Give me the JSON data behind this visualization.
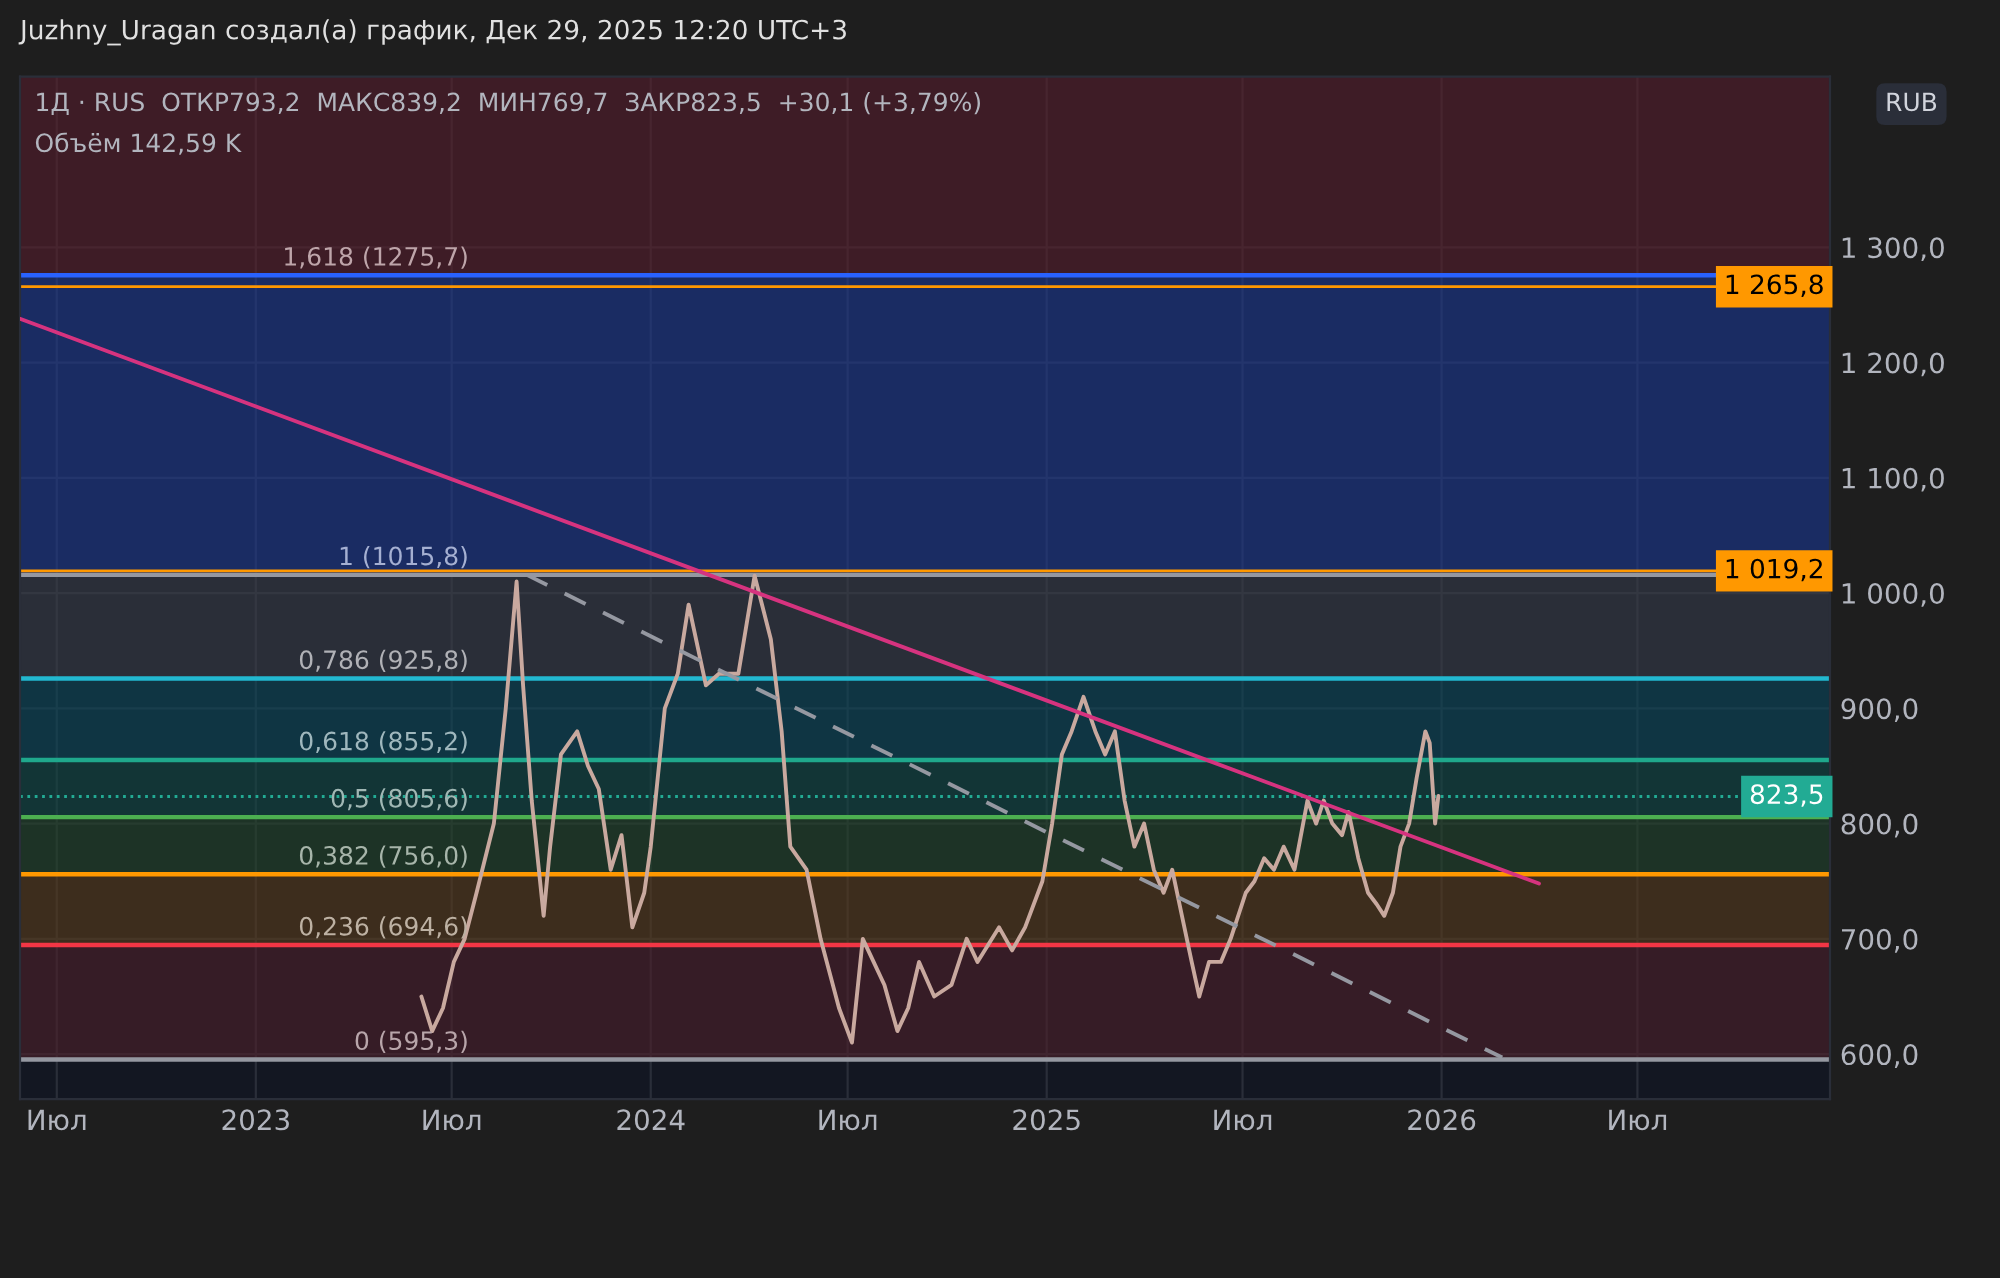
{
  "chart_data": {
    "type": "line",
    "title": "Juzhny_Uragan создал(а) график, Дек 29, 2025 12:20 UTC+3",
    "subtitle": "1Д · RUS  ОТКР793,2  МАКС839,2  МИН769,7  ЗАКР823,5  +30,1 (+3,79%)",
    "annotations": [
      "Объём 142,59 K",
      "RUB"
    ],
    "xlim": [
      "2022-05-28",
      "2026-12-26"
    ],
    "xticks": [
      {
        "value": "2022-07",
        "label": "Июл"
      },
      "2023",
      {
        "value": "2023-07",
        "label": "Июл"
      },
      "2024",
      {
        "value": "2024-07",
        "label": "Июл"
      },
      "2025",
      {
        "value": "2025-07",
        "label": "Июл"
      },
      "2026",
      {
        "value": "2026-07",
        "label": "Июл"
      }
    ],
    "ylim": [
      561,
      1448
    ],
    "yticks": [
      {
        "value": 600,
        "label": "600,0"
      },
      {
        "value": 700,
        "label": "700,0"
      },
      {
        "value": 800,
        "label": "800,0"
      },
      {
        "value": 900,
        "label": "900,0"
      },
      {
        "value": 1000,
        "label": "1 000,0"
      },
      {
        "value": 1100,
        "label": "1 100,0"
      },
      {
        "value": 1200,
        "label": "1 200,0"
      },
      {
        "value": 1300,
        "label": "1 300,0"
      }
    ],
    "grid": true,
    "bands": [
      {
        "axis": "y",
        "from": 1275.7,
        "to": 1448,
        "color": "#5c1f2a",
        "label": "1,618 (1275,7)"
      },
      {
        "axis": "y",
        "from": 1015.8,
        "to": 1275.7,
        "color": "#1f3a8f",
        "label": "1 (1015,8)"
      },
      {
        "axis": "y",
        "from": 925.8,
        "to": 1015.8,
        "color": "#3a3d48",
        "label": "0,786 (925,8)"
      },
      {
        "axis": "y",
        "from": 855.2,
        "to": 925.8,
        "color": "#0e4a5a",
        "label": "0,618 (855,2)"
      },
      {
        "axis": "y",
        "from": 805.6,
        "to": 855.2,
        "color": "#124a44",
        "label": "0,5 (805,6)"
      },
      {
        "axis": "y",
        "from": 756.0,
        "to": 805.6,
        "color": "#24462a",
        "label": "0,382 (756,0)"
      },
      {
        "axis": "y",
        "from": 694.6,
        "to": 756.0,
        "color": "#5a3c1a",
        "label": "0,236 (694,6)"
      },
      {
        "axis": "y",
        "from": 595.3,
        "to": 694.6,
        "color": "#4e1f2a",
        "label": "0 (595,3)"
      }
    ],
    "ref_lines": [
      {
        "axis": "y",
        "value": 1275.7,
        "color": "#2962ff"
      },
      {
        "axis": "y",
        "value": 1015.8,
        "color": "#9598a1"
      },
      {
        "axis": "y",
        "value": 925.8,
        "color": "#22b8d0"
      },
      {
        "axis": "y",
        "value": 855.2,
        "color": "#1fa88c"
      },
      {
        "axis": "y",
        "value": 805.6,
        "color": "#4caf50"
      },
      {
        "axis": "y",
        "value": 756.0,
        "color": "#ff9800"
      },
      {
        "axis": "y",
        "value": 694.6,
        "color": "#f23645"
      },
      {
        "axis": "y",
        "value": 595.3,
        "color": "#9598a1"
      },
      {
        "axis": "y",
        "value": 1265.8,
        "label": "1 265,8",
        "color": "#ff9800"
      },
      {
        "axis": "y",
        "value": 1019.2,
        "label": "1 019,2",
        "color": "#ff9800"
      },
      {
        "axis": "y",
        "value": 823.5,
        "label": "823,5",
        "color": "#22ab94",
        "line_style": "dotted"
      }
    ],
    "series": [
      {
        "color": "#c9a99f",
        "x": [
          "2023-06-03",
          "2023-06-13",
          "2023-06-23",
          "2023-07-03",
          "2023-07-13",
          "2023-07-24",
          "2023-08-09",
          "2023-08-20",
          "2023-08-30",
          "2023-09-05",
          "2023-09-13",
          "2023-09-24",
          "2023-09-30",
          "2023-10-10",
          "2023-10-25",
          "2023-11-04",
          "2023-11-14",
          "2023-11-25",
          "2023-12-05",
          "2023-12-15",
          "2023-12-26",
          "2024-01-01",
          "2024-01-14",
          "2024-01-26",
          "2024-02-05",
          "2024-02-21",
          "2024-03-04",
          "2024-03-22",
          "2024-04-06",
          "2024-04-21",
          "2024-05-01",
          "2024-05-09",
          "2024-05-24",
          "2024-06-06",
          "2024-06-23",
          "2024-07-05",
          "2024-07-15",
          "2024-07-25",
          "2024-08-04",
          "2024-08-16",
          "2024-08-26",
          "2024-09-05",
          "2024-09-19",
          "2024-10-05",
          "2024-10-19",
          "2024-10-29",
          "2024-11-18",
          "2024-11-30",
          "2024-12-12",
          "2024-12-28",
          "2025-01-06",
          "2025-01-15",
          "2025-01-24",
          "2025-02-04",
          "2025-02-15",
          "2025-02-24",
          "2025-03-05",
          "2025-03-14",
          "2025-03-23",
          "2025-04-01",
          "2025-04-10",
          "2025-04-19",
          "2025-04-27",
          "2025-05-06",
          "2025-05-15",
          "2025-05-22",
          "2025-05-31",
          "2025-06-11",
          "2025-06-20",
          "2025-07-04",
          "2025-07-12",
          "2025-07-21",
          "2025-07-30",
          "2025-08-08",
          "2025-08-18",
          "2025-08-26",
          "2025-08-30",
          "2025-09-07",
          "2025-09-14",
          "2025-09-22",
          "2025-10-01",
          "2025-10-07",
          "2025-10-16",
          "2025-10-25",
          "2025-11-02",
          "2025-11-09",
          "2025-11-17",
          "2025-11-24",
          "2025-12-02",
          "2025-12-09",
          "2025-12-17",
          "2025-12-21",
          "2025-12-26",
          "2025-12-29"
        ],
        "values": [
          650,
          620,
          640,
          680,
          700,
          740,
          800,
          900,
          1010,
          920,
          820,
          720,
          780,
          860,
          880,
          850,
          830,
          760,
          790,
          710,
          740,
          780,
          900,
          930,
          990,
          920,
          930,
          930,
          1015,
          960,
          880,
          780,
          760,
          700,
          640,
          610,
          700,
          680,
          660,
          620,
          640,
          680,
          650,
          660,
          700,
          680,
          710,
          690,
          710,
          750,
          800,
          860,
          880,
          910,
          880,
          860,
          880,
          820,
          780,
          800,
          760,
          740,
          760,
          720,
          680,
          650,
          680,
          680,
          700,
          740,
          750,
          770,
          760,
          780,
          760,
          800,
          820,
          800,
          820,
          800,
          790,
          810,
          770,
          740,
          730,
          720,
          740,
          780,
          800,
          840,
          880,
          870,
          800,
          824
        ]
      },
      {
        "color": "#d6337f",
        "x": [
          "2022-05-28",
          "2026-04-01"
        ],
        "values": [
          1238,
          748
        ]
      },
      {
        "color": "#9598a1",
        "line_style": "dashed",
        "x": [
          "2023-09-08",
          "2026-02-26"
        ],
        "values": [
          1016,
          597
        ]
      }
    ]
  }
}
